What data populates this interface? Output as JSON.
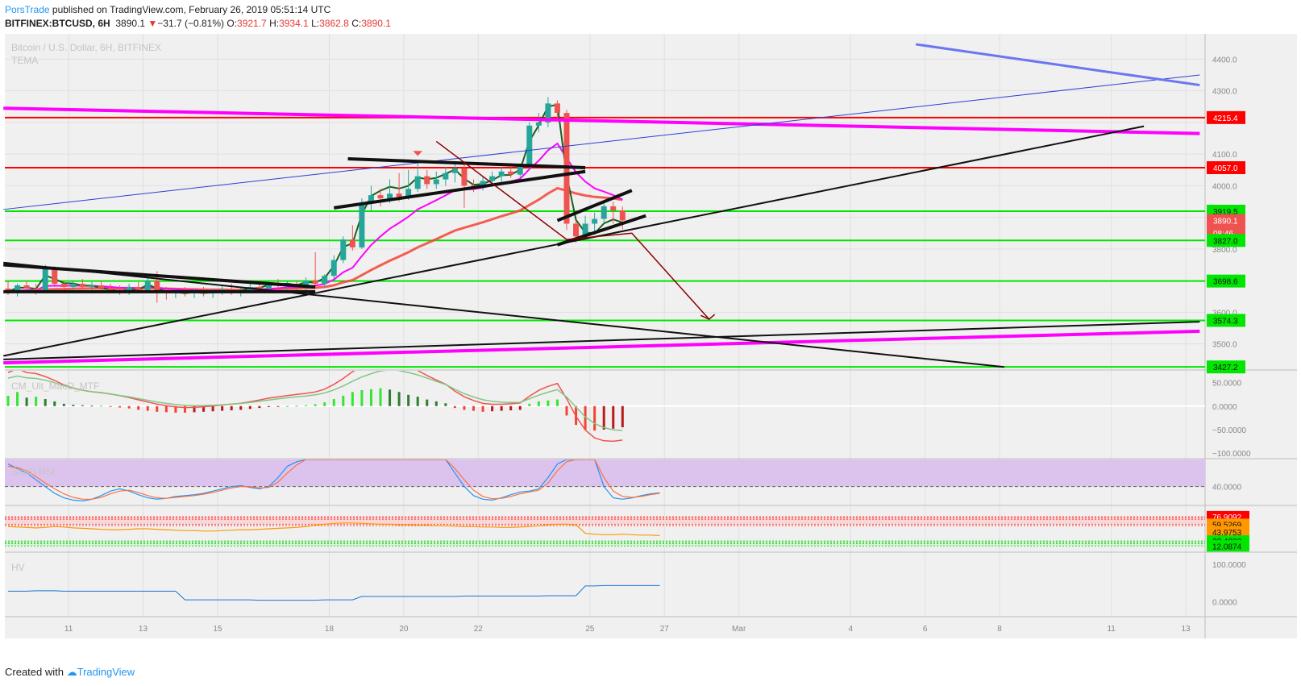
{
  "header": {
    "author": "PorsTrade",
    "published": " published on TradingView.com, February 26, 2019 05:51:14 UTC",
    "symbol": "BITFINEX:BTCUSD, 6H",
    "last": "3890.1",
    "arrow": "▼",
    "change": "−31.7 (−0.81%)",
    "o_label": "O:",
    "o": "3921.7",
    "h_label": "H:",
    "h": "3934.1",
    "l_label": "L:",
    "l": "3862.8",
    "c_label": "C:",
    "c": "3890.1"
  },
  "footer": {
    "created": "Created with",
    "brand": "TradingView"
  },
  "legend": {
    "title": "Bitcoin / U.S. Dollar, 6H, BITFINEX",
    "indicator": "TEMA",
    "macd": "CM_Ult_MacD_MTF",
    "stoch": "Stoch RSI",
    "hv": "HV"
  },
  "colors": {
    "up": "#26a69a",
    "down": "#ef5350",
    "grid": "#e0e0e0",
    "panel_bg": "#f0f0f0",
    "support": "#00e600",
    "resistance": "#ff0000",
    "magenta": "#ff00ff"
  },
  "chart_data": [
    {
      "type": "candlestick",
      "title": "Bitcoin / U.S. Dollar, 6H, BITFINEX",
      "ylim": [
        3420,
        4480
      ],
      "y_ticks": [
        "4400.0",
        "4300.0",
        "4100.0",
        "4000.0",
        "3900.0",
        "3800.0",
        "3600.0",
        "3500.0"
      ],
      "x_ticks": [
        "11",
        "13",
        "15",
        "18",
        "20",
        "22",
        "25",
        "27",
        "Mar",
        "4",
        "6",
        "8",
        "11",
        "13"
      ],
      "price_labels": [
        {
          "value": 4215.4,
          "text": "4215.4",
          "kind": "resistance"
        },
        {
          "value": 4057.0,
          "text": "4057.0",
          "kind": "resistance"
        },
        {
          "value": 3919.5,
          "text": "3919.5",
          "kind": "support"
        },
        {
          "value": 3890.1,
          "text": "3890.1",
          "kind": "last"
        },
        {
          "value": 3850.0,
          "text": "08:46",
          "kind": "countdown"
        },
        {
          "value": 3827.0,
          "text": "3827.0",
          "kind": "support"
        },
        {
          "value": 3698.6,
          "text": "3698.6",
          "kind": "support"
        },
        {
          "value": 3574.3,
          "text": "3574.3",
          "kind": "support"
        },
        {
          "value": 3427.2,
          "text": "3427.2",
          "kind": "support"
        }
      ],
      "candles": [
        {
          "date": "2019-02-09 12:00",
          "o": 3675,
          "h": 3700,
          "l": 3655,
          "c": 3665
        },
        {
          "date": "2019-02-09 18:00",
          "o": 3665,
          "h": 3690,
          "l": 3650,
          "c": 3685
        },
        {
          "date": "2019-02-10 00:00",
          "o": 3685,
          "h": 3700,
          "l": 3665,
          "c": 3675
        },
        {
          "date": "2019-02-10 06:00",
          "o": 3675,
          "h": 3690,
          "l": 3655,
          "c": 3670
        },
        {
          "date": "2019-02-10 12:00",
          "o": 3670,
          "h": 3750,
          "l": 3665,
          "c": 3740
        },
        {
          "date": "2019-02-10 18:00",
          "o": 3740,
          "h": 3745,
          "l": 3680,
          "c": 3690
        },
        {
          "date": "2019-02-11 00:00",
          "o": 3690,
          "h": 3700,
          "l": 3660,
          "c": 3680
        },
        {
          "date": "2019-02-11 06:00",
          "o": 3680,
          "h": 3700,
          "l": 3665,
          "c": 3690
        },
        {
          "date": "2019-02-11 12:00",
          "o": 3690,
          "h": 3705,
          "l": 3675,
          "c": 3680
        },
        {
          "date": "2019-02-11 18:00",
          "o": 3680,
          "h": 3695,
          "l": 3665,
          "c": 3685
        },
        {
          "date": "2019-02-12 00:00",
          "o": 3685,
          "h": 3700,
          "l": 3665,
          "c": 3675
        },
        {
          "date": "2019-02-12 06:00",
          "o": 3675,
          "h": 3690,
          "l": 3660,
          "c": 3670
        },
        {
          "date": "2019-02-12 12:00",
          "o": 3670,
          "h": 3685,
          "l": 3655,
          "c": 3665
        },
        {
          "date": "2019-02-12 18:00",
          "o": 3665,
          "h": 3690,
          "l": 3655,
          "c": 3680
        },
        {
          "date": "2019-02-13 00:00",
          "o": 3680,
          "h": 3695,
          "l": 3660,
          "c": 3670
        },
        {
          "date": "2019-02-13 06:00",
          "o": 3670,
          "h": 3720,
          "l": 3665,
          "c": 3700
        },
        {
          "date": "2019-02-13 12:00",
          "o": 3700,
          "h": 3730,
          "l": 3630,
          "c": 3665
        },
        {
          "date": "2019-02-13 18:00",
          "o": 3665,
          "h": 3680,
          "l": 3640,
          "c": 3660
        },
        {
          "date": "2019-02-14 00:00",
          "o": 3660,
          "h": 3675,
          "l": 3645,
          "c": 3665
        },
        {
          "date": "2019-02-14 06:00",
          "o": 3665,
          "h": 3680,
          "l": 3650,
          "c": 3660
        },
        {
          "date": "2019-02-14 12:00",
          "o": 3660,
          "h": 3675,
          "l": 3645,
          "c": 3668
        },
        {
          "date": "2019-02-14 18:00",
          "o": 3668,
          "h": 3680,
          "l": 3650,
          "c": 3660
        },
        {
          "date": "2019-02-15 00:00",
          "o": 3660,
          "h": 3675,
          "l": 3645,
          "c": 3665
        },
        {
          "date": "2019-02-15 06:00",
          "o": 3665,
          "h": 3685,
          "l": 3655,
          "c": 3672
        },
        {
          "date": "2019-02-15 12:00",
          "o": 3672,
          "h": 3690,
          "l": 3655,
          "c": 3660
        },
        {
          "date": "2019-02-15 18:00",
          "o": 3660,
          "h": 3680,
          "l": 3650,
          "c": 3670
        },
        {
          "date": "2019-02-16 00:00",
          "o": 3670,
          "h": 3695,
          "l": 3660,
          "c": 3680
        },
        {
          "date": "2019-02-16 06:00",
          "o": 3680,
          "h": 3700,
          "l": 3665,
          "c": 3675
        },
        {
          "date": "2019-02-16 12:00",
          "o": 3675,
          "h": 3700,
          "l": 3665,
          "c": 3690
        },
        {
          "date": "2019-02-16 18:00",
          "o": 3690,
          "h": 3705,
          "l": 3675,
          "c": 3685
        },
        {
          "date": "2019-02-17 00:00",
          "o": 3685,
          "h": 3700,
          "l": 3670,
          "c": 3690
        },
        {
          "date": "2019-02-17 06:00",
          "o": 3690,
          "h": 3700,
          "l": 3670,
          "c": 3680
        },
        {
          "date": "2019-02-17 12:00",
          "o": 3680,
          "h": 3710,
          "l": 3670,
          "c": 3700
        },
        {
          "date": "2019-02-17 18:00",
          "o": 3700,
          "h": 3790,
          "l": 3680,
          "c": 3690
        },
        {
          "date": "2019-02-18 00:00",
          "o": 3690,
          "h": 3720,
          "l": 3680,
          "c": 3715
        },
        {
          "date": "2019-02-18 06:00",
          "o": 3715,
          "h": 3780,
          "l": 3705,
          "c": 3765
        },
        {
          "date": "2019-02-18 12:00",
          "o": 3765,
          "h": 3840,
          "l": 3755,
          "c": 3830
        },
        {
          "date": "2019-02-18 18:00",
          "o": 3830,
          "h": 3875,
          "l": 3795,
          "c": 3805
        },
        {
          "date": "2019-02-19 00:00",
          "o": 3805,
          "h": 3960,
          "l": 3800,
          "c": 3945
        },
        {
          "date": "2019-02-19 06:00",
          "o": 3945,
          "h": 4000,
          "l": 3920,
          "c": 3970
        },
        {
          "date": "2019-02-19 12:00",
          "o": 3970,
          "h": 3990,
          "l": 3935,
          "c": 3960
        },
        {
          "date": "2019-02-19 18:00",
          "o": 3960,
          "h": 4020,
          "l": 3945,
          "c": 3975
        },
        {
          "date": "2019-02-20 00:00",
          "o": 3975,
          "h": 4040,
          "l": 3950,
          "c": 3965
        },
        {
          "date": "2019-02-20 06:00",
          "o": 3965,
          "h": 4050,
          "l": 3955,
          "c": 3990
        },
        {
          "date": "2019-02-20 12:00",
          "o": 3990,
          "h": 4070,
          "l": 3980,
          "c": 4030
        },
        {
          "date": "2019-02-20 18:00",
          "o": 4030,
          "h": 4050,
          "l": 3990,
          "c": 4005
        },
        {
          "date": "2019-02-21 00:00",
          "o": 4005,
          "h": 4045,
          "l": 3990,
          "c": 4020
        },
        {
          "date": "2019-02-21 06:00",
          "o": 4020,
          "h": 4060,
          "l": 4000,
          "c": 4040
        },
        {
          "date": "2019-02-21 12:00",
          "o": 4040,
          "h": 4070,
          "l": 4010,
          "c": 4055
        },
        {
          "date": "2019-02-21 18:00",
          "o": 4055,
          "h": 4070,
          "l": 3930,
          "c": 4000
        },
        {
          "date": "2019-02-22 00:00",
          "o": 4000,
          "h": 4020,
          "l": 3980,
          "c": 3995
        },
        {
          "date": "2019-02-22 06:00",
          "o": 3995,
          "h": 4030,
          "l": 3985,
          "c": 4015
        },
        {
          "date": "2019-02-22 12:00",
          "o": 4015,
          "h": 4045,
          "l": 4000,
          "c": 4030
        },
        {
          "date": "2019-02-22 18:00",
          "o": 4030,
          "h": 4060,
          "l": 4010,
          "c": 4045
        },
        {
          "date": "2019-02-23 00:00",
          "o": 4045,
          "h": 4060,
          "l": 4025,
          "c": 4035
        },
        {
          "date": "2019-02-23 06:00",
          "o": 4035,
          "h": 4070,
          "l": 4025,
          "c": 4060
        },
        {
          "date": "2019-02-23 12:00",
          "o": 4060,
          "h": 4200,
          "l": 4050,
          "c": 4190
        },
        {
          "date": "2019-02-23 18:00",
          "o": 4190,
          "h": 4230,
          "l": 4170,
          "c": 4200
        },
        {
          "date": "2019-02-24 00:00",
          "o": 4200,
          "h": 4280,
          "l": 4185,
          "c": 4260
        },
        {
          "date": "2019-02-24 06:00",
          "o": 4260,
          "h": 4270,
          "l": 4210,
          "c": 4230
        },
        {
          "date": "2019-02-24 12:00",
          "o": 4230,
          "h": 4240,
          "l": 3860,
          "c": 3880
        },
        {
          "date": "2019-02-24 18:00",
          "o": 3880,
          "h": 3890,
          "l": 3820,
          "c": 3840
        },
        {
          "date": "2019-02-25 00:00",
          "o": 3840,
          "h": 3905,
          "l": 3830,
          "c": 3880
        },
        {
          "date": "2019-02-25 06:00",
          "o": 3880,
          "h": 3915,
          "l": 3845,
          "c": 3895
        },
        {
          "date": "2019-02-25 12:00",
          "o": 3895,
          "h": 3950,
          "l": 3880,
          "c": 3935
        },
        {
          "date": "2019-02-25 18:00",
          "o": 3935,
          "h": 3950,
          "l": 3880,
          "c": 3921.7
        },
        {
          "date": "2019-02-26 00:00",
          "o": 3921.7,
          "h": 3934.1,
          "l": 3862.8,
          "c": 3890.1
        }
      ]
    },
    {
      "type": "bar",
      "title": "CM_Ult_MacD_MTF",
      "ylim": [
        -110,
        75
      ],
      "y_ticks": [
        "50.0000",
        "0.0000",
        "−50.0000",
        "−100.0000"
      ],
      "values": [
        22,
        30,
        18,
        20,
        15,
        10,
        5,
        3,
        2,
        1,
        1,
        -1,
        -3,
        -5,
        -8,
        -10,
        -12,
        -13,
        -14,
        -14,
        -13,
        -12,
        -11,
        -10,
        -9,
        -8,
        -6,
        -4,
        -2,
        -1,
        0,
        1,
        2,
        4,
        8,
        15,
        22,
        30,
        34,
        36,
        38,
        35,
        30,
        24,
        20,
        14,
        10,
        6,
        -4,
        -8,
        -10,
        -12,
        -11,
        -10,
        -9,
        -8,
        5,
        10,
        12,
        14,
        -20,
        -40,
        -50,
        -52,
        -50,
        -48,
        -45
      ]
    },
    {
      "type": "line",
      "title": "Stoch RSI",
      "ylim": [
        0,
        100
      ],
      "y_ticks": [
        "40.0000"
      ],
      "series": [
        {
          "values": [
            90,
            80,
            70,
            55,
            40,
            25,
            15,
            10,
            8,
            12,
            20,
            30,
            35,
            30,
            22,
            15,
            12,
            14,
            18,
            20,
            22,
            25,
            30,
            35,
            40,
            42,
            38,
            35,
            40,
            60,
            85,
            95,
            100,
            100,
            100,
            100,
            100,
            100,
            100,
            100,
            100,
            100,
            100,
            100,
            100,
            100,
            100,
            100,
            70,
            40,
            20,
            12,
            10,
            15,
            22,
            28,
            30,
            35,
            60,
            90,
            100,
            100,
            100,
            100,
            40,
            15,
            12,
            15,
            20,
            24,
            26
          ]
        },
        {
          "values": [
            85,
            82,
            75,
            62,
            48,
            35,
            24,
            16,
            12,
            12,
            16,
            24,
            30,
            32,
            27,
            20,
            15,
            14,
            16,
            18,
            20,
            23,
            27,
            32,
            37,
            40,
            40,
            37,
            38,
            50,
            70,
            88,
            100,
            100,
            100,
            100,
            100,
            100,
            100,
            100,
            100,
            100,
            100,
            100,
            100,
            100,
            100,
            100,
            80,
            55,
            32,
            18,
            13,
            14,
            18,
            24,
            28,
            32,
            48,
            75,
            95,
            100,
            100,
            100,
            60,
            30,
            18,
            16,
            18,
            22,
            25
          ]
        }
      ]
    },
    {
      "type": "line",
      "title": "",
      "ylim": [
        0,
        100
      ],
      "price_labels": [
        "76.9092",
        "59.5269",
        "43.9753",
        "23.4032",
        "12.0874"
      ],
      "series": [
        {
          "values": [
            55,
            54,
            53,
            52,
            53,
            55,
            54,
            52,
            51,
            50,
            49,
            48,
            48,
            49,
            50,
            50,
            49,
            48,
            47,
            46,
            46,
            45,
            45,
            46,
            47,
            48,
            48,
            49,
            50,
            51,
            52,
            53,
            55,
            58,
            60,
            62,
            63,
            63,
            62,
            61,
            60,
            60,
            59,
            59,
            58,
            58,
            57,
            57,
            56,
            55,
            55,
            54,
            54,
            53,
            53,
            54,
            55,
            57,
            59,
            60,
            60,
            59,
            40,
            38,
            37,
            37,
            38,
            37,
            36,
            36,
            35
          ]
        }
      ]
    },
    {
      "type": "line",
      "title": "HV",
      "ylim": [
        -40,
        130
      ],
      "y_ticks": [
        "100.0000",
        "0.0000"
      ],
      "series": [
        {
          "values": [
            28,
            28,
            28,
            29,
            29,
            29,
            28,
            28,
            28,
            28,
            28,
            28,
            28,
            28,
            28,
            28,
            28,
            28,
            28,
            5,
            5,
            5,
            5,
            5,
            5,
            5,
            5,
            4,
            4,
            4,
            4,
            4,
            4,
            4,
            5,
            5,
            5,
            5,
            14,
            14,
            14,
            14,
            14,
            14,
            14,
            14,
            14,
            14,
            14,
            15,
            15,
            15,
            15,
            15,
            15,
            15,
            15,
            15,
            16,
            16,
            16,
            16,
            42,
            42,
            43,
            43,
            43,
            43,
            43,
            43,
            43
          ]
        }
      ]
    }
  ]
}
